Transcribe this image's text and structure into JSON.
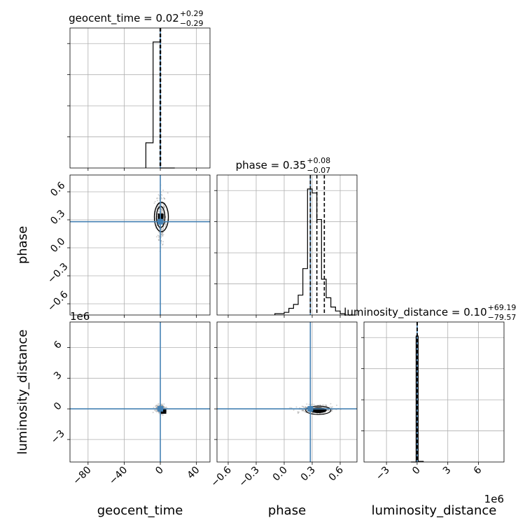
{
  "chart_data": {
    "type": "corner",
    "grid": true,
    "truth_color": "#4682b4",
    "truths": {
      "geocent_time": 0.0,
      "phase": 0.28,
      "luminosity_distance": 0.0
    },
    "params": [
      {
        "name": "geocent_time",
        "xlabel": "geocent_time",
        "title_prefix": "geocent_time = 0.02",
        "title_plus": "+0.29",
        "title_minus": "−0.29",
        "range": [
          -100,
          55
        ],
        "ticks": [
          -80,
          -40,
          0,
          40
        ],
        "tick_labels": [
          "−80",
          "−40",
          "0",
          "40"
        ],
        "quantiles": [
          -0.27,
          0.02,
          0.31
        ],
        "hist_edges": [
          -16,
          -8,
          0,
          8,
          16
        ],
        "hist_counts": [
          0.2,
          1.0,
          0.0,
          0.0
        ],
        "diag_grid_rows": 4,
        "sci": ""
      },
      {
        "name": "phase",
        "xlabel": "phase",
        "ylabel": "phase",
        "title_prefix": "phase = 0.35",
        "title_plus": "+0.08",
        "title_minus": "−0.07",
        "range": [
          -0.72,
          0.78
        ],
        "ticks": [
          -0.6,
          -0.3,
          0.0,
          0.3,
          0.6
        ],
        "tick_labels": [
          "−0.6",
          "−0.3",
          "0.0",
          "0.3",
          "0.6"
        ],
        "quantiles": [
          0.28,
          0.35,
          0.43
        ],
        "hist_edges": [
          -0.1,
          0.0,
          0.05,
          0.1,
          0.15,
          0.2,
          0.25,
          0.3,
          0.35,
          0.4,
          0.45,
          0.5,
          0.55,
          0.6,
          0.65,
          0.7,
          0.75
        ],
        "hist_counts": [
          0.01,
          0.02,
          0.05,
          0.08,
          0.15,
          0.35,
          0.95,
          0.92,
          0.72,
          0.27,
          0.13,
          0.06,
          0.03,
          0.01,
          0.0,
          0.0
        ],
        "diag_grid_rows": 4,
        "sci": ""
      },
      {
        "name": "luminosity_distance",
        "xlabel": "luminosity_distance",
        "ylabel": "luminosity_distance",
        "title_prefix": "luminosity_distance = 0.10",
        "title_plus": "+69.19",
        "title_minus": "−79.57",
        "range": [
          -5.2,
          8.5
        ],
        "ticks": [
          -3,
          0,
          3,
          6
        ],
        "tick_labels": [
          "−3",
          "0",
          "3",
          "6"
        ],
        "quantiles": [
          -8e-05,
          1e-07,
          6.9e-05
        ],
        "hist_edges": [
          -0.6,
          -0.1,
          0.1,
          0.6
        ],
        "hist_counts": [
          0.0,
          1.0,
          0.005
        ],
        "diag_grid_rows": 4,
        "sci": "1e6"
      }
    ]
  }
}
